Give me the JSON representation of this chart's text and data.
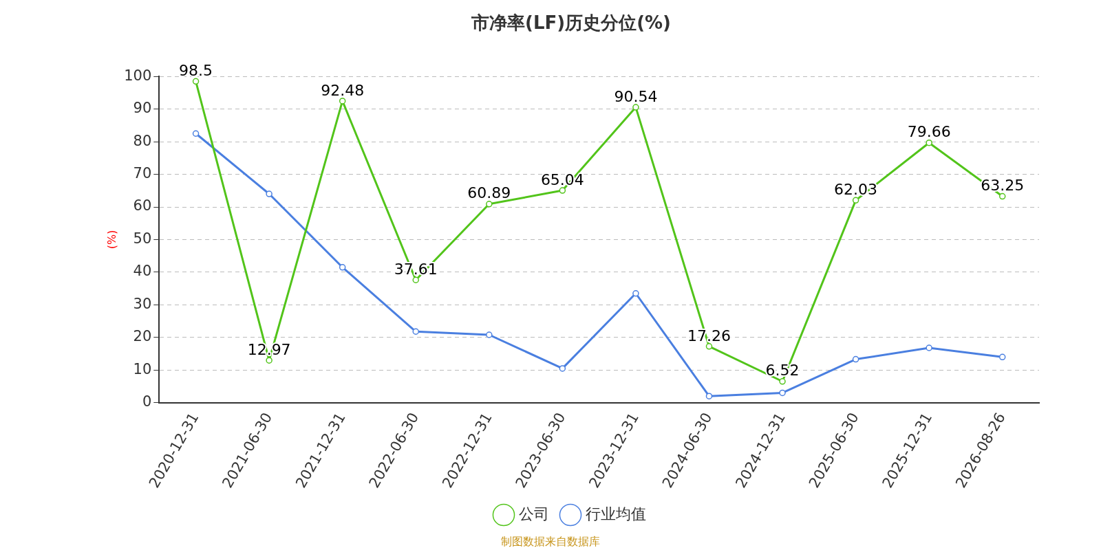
{
  "chart_data": {
    "type": "line",
    "title": "市净率(LF)历史分位(%)",
    "ylabel": "(%)",
    "categories": [
      "2020-12-31",
      "2021-06-30",
      "2021-12-31",
      "2022-06-30",
      "2022-12-31",
      "2023-06-30",
      "2023-12-31",
      "2024-06-30",
      "2024-12-31",
      "2025-06-30",
      "2025-12-31",
      "2026-08-26"
    ],
    "series": [
      {
        "name": "公司",
        "color": "#52c41a",
        "values": [
          98.5,
          12.97,
          92.48,
          37.61,
          60.89,
          65.04,
          90.54,
          17.26,
          6.52,
          62.03,
          79.66,
          63.25
        ],
        "value_labels": [
          "98.5",
          "12.97",
          "92.48",
          "37.61",
          "60.89",
          "65.04",
          "90.54",
          "17.26",
          "6.52",
          "62.03",
          "79.66",
          "63.25"
        ]
      },
      {
        "name": "行业均值",
        "color": "#4a7fe0",
        "values": [
          82.5,
          64,
          41.5,
          21.8,
          20.8,
          10.5,
          33.5,
          2,
          3,
          13.3,
          16.8,
          14
        ]
      }
    ],
    "ylim": [
      0,
      100
    ],
    "yticks": [
      0,
      10,
      20,
      30,
      40,
      50,
      60,
      70,
      80,
      90,
      100
    ],
    "grid": "y",
    "legend": "bottom",
    "marker": "circle",
    "line_style": "solid",
    "annotations": [
      "制图数据来自数据库"
    ]
  }
}
